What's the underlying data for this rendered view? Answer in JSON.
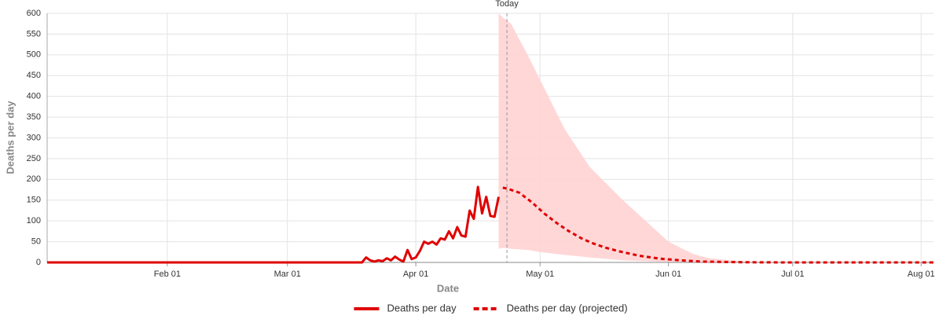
{
  "chart_data": {
    "type": "line",
    "x_label": "Date",
    "y_label": "Deaths per day",
    "xlim": [
      2,
      216
    ],
    "xticks": [
      {
        "value": 31,
        "label": "Feb 01"
      },
      {
        "value": 60,
        "label": "Mar 01"
      },
      {
        "value": 91,
        "label": "Apr 01"
      },
      {
        "value": 121,
        "label": "May 01"
      },
      {
        "value": 152,
        "label": "Jun 01"
      },
      {
        "value": 182,
        "label": "Jul 01"
      },
      {
        "value": 213,
        "label": "Aug 01"
      }
    ],
    "ylim": [
      0,
      600
    ],
    "yticks": [
      0,
      50,
      100,
      150,
      200,
      250,
      300,
      350,
      400,
      450,
      500,
      550,
      600
    ],
    "grid": true,
    "legend": "bottom",
    "series": [
      {
        "name": "Deaths per day",
        "color": "#e00000",
        "dashed": false,
        "x": [
          2,
          78,
          79,
          80,
          81,
          82,
          83,
          84,
          85,
          86,
          87,
          88,
          89,
          90,
          91,
          92,
          93,
          94,
          95,
          96,
          97,
          98,
          99,
          100,
          101,
          102,
          103,
          104,
          105,
          106,
          107,
          108,
          109,
          110,
          111
        ],
        "values": [
          0,
          0,
          12,
          5,
          2,
          5,
          3,
          10,
          5,
          14,
          7,
          2,
          30,
          8,
          12,
          28,
          50,
          45,
          50,
          43,
          58,
          55,
          75,
          58,
          85,
          65,
          62,
          125,
          105,
          182,
          118,
          158,
          112,
          110,
          158
        ]
      },
      {
        "name": "Deaths per day (projected)",
        "color": "#e00000",
        "dashed": true,
        "x": [
          112,
          113,
          116,
          119,
          122,
          125,
          128,
          131,
          134,
          137,
          140,
          145,
          150,
          155,
          160,
          170,
          180,
          200,
          216
        ],
        "values": [
          180,
          178,
          168,
          145,
          118,
          95,
          75,
          58,
          45,
          35,
          27,
          16,
          9,
          5,
          2,
          0.5,
          0,
          0,
          0
        ]
      }
    ],
    "band": {
      "color": "#ffd3d3",
      "x": [
        111,
        112,
        114,
        118,
        121,
        127,
        133,
        141,
        152,
        158,
        162,
        171,
        180,
        216
      ],
      "upper": [
        600,
        590,
        575,
        500,
        440,
        320,
        230,
        150,
        50,
        20,
        10,
        2,
        0,
        0
      ],
      "lower": [
        33,
        35,
        33,
        30,
        25,
        18,
        12,
        5,
        1,
        0.5,
        0,
        0,
        0,
        0
      ]
    },
    "annotation": {
      "label": "Today",
      "x": 113
    }
  }
}
